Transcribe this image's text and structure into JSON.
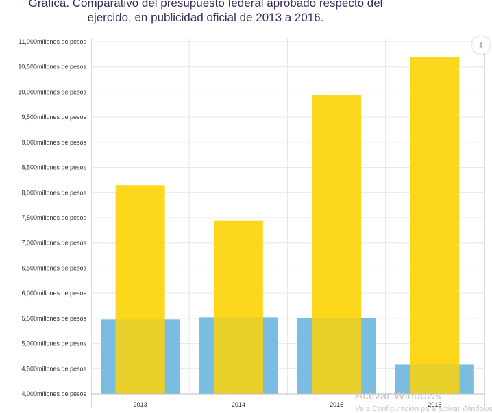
{
  "title": {
    "line1": "Gráfica. Comparativo del presupuesto federal aprobado respecto del",
    "line2": "ejercido, en publicidad oficial de 2013 a 2016."
  },
  "download_button": {
    "icon": "download-icon",
    "glyph": "⬇"
  },
  "watermark": {
    "text": "Activar Windows",
    "subtext": "Ve a Configuración para activar Windows."
  },
  "colors": {
    "series_blue": "#7bbde0",
    "series_yellow": "#fcd71c",
    "overlap": "#e8cf2a",
    "grid": "#e6e6e6"
  },
  "chart_data": {
    "type": "bar",
    "categories": [
      "2013",
      "2014",
      "2015",
      "2016"
    ],
    "series": [
      {
        "values": [
          5480,
          5520,
          5510,
          4580
        ]
      },
      {
        "values": [
          8150,
          7450,
          9950,
          10700
        ]
      }
    ],
    "ylim": [
      4000,
      11000
    ],
    "yticks": [
      4000,
      4500,
      5000,
      5500,
      6000,
      6500,
      7000,
      7500,
      8000,
      8500,
      9000,
      9500,
      10000,
      10500,
      11000
    ],
    "ytick_suffix": "millones de pesos",
    "grid": true
  }
}
